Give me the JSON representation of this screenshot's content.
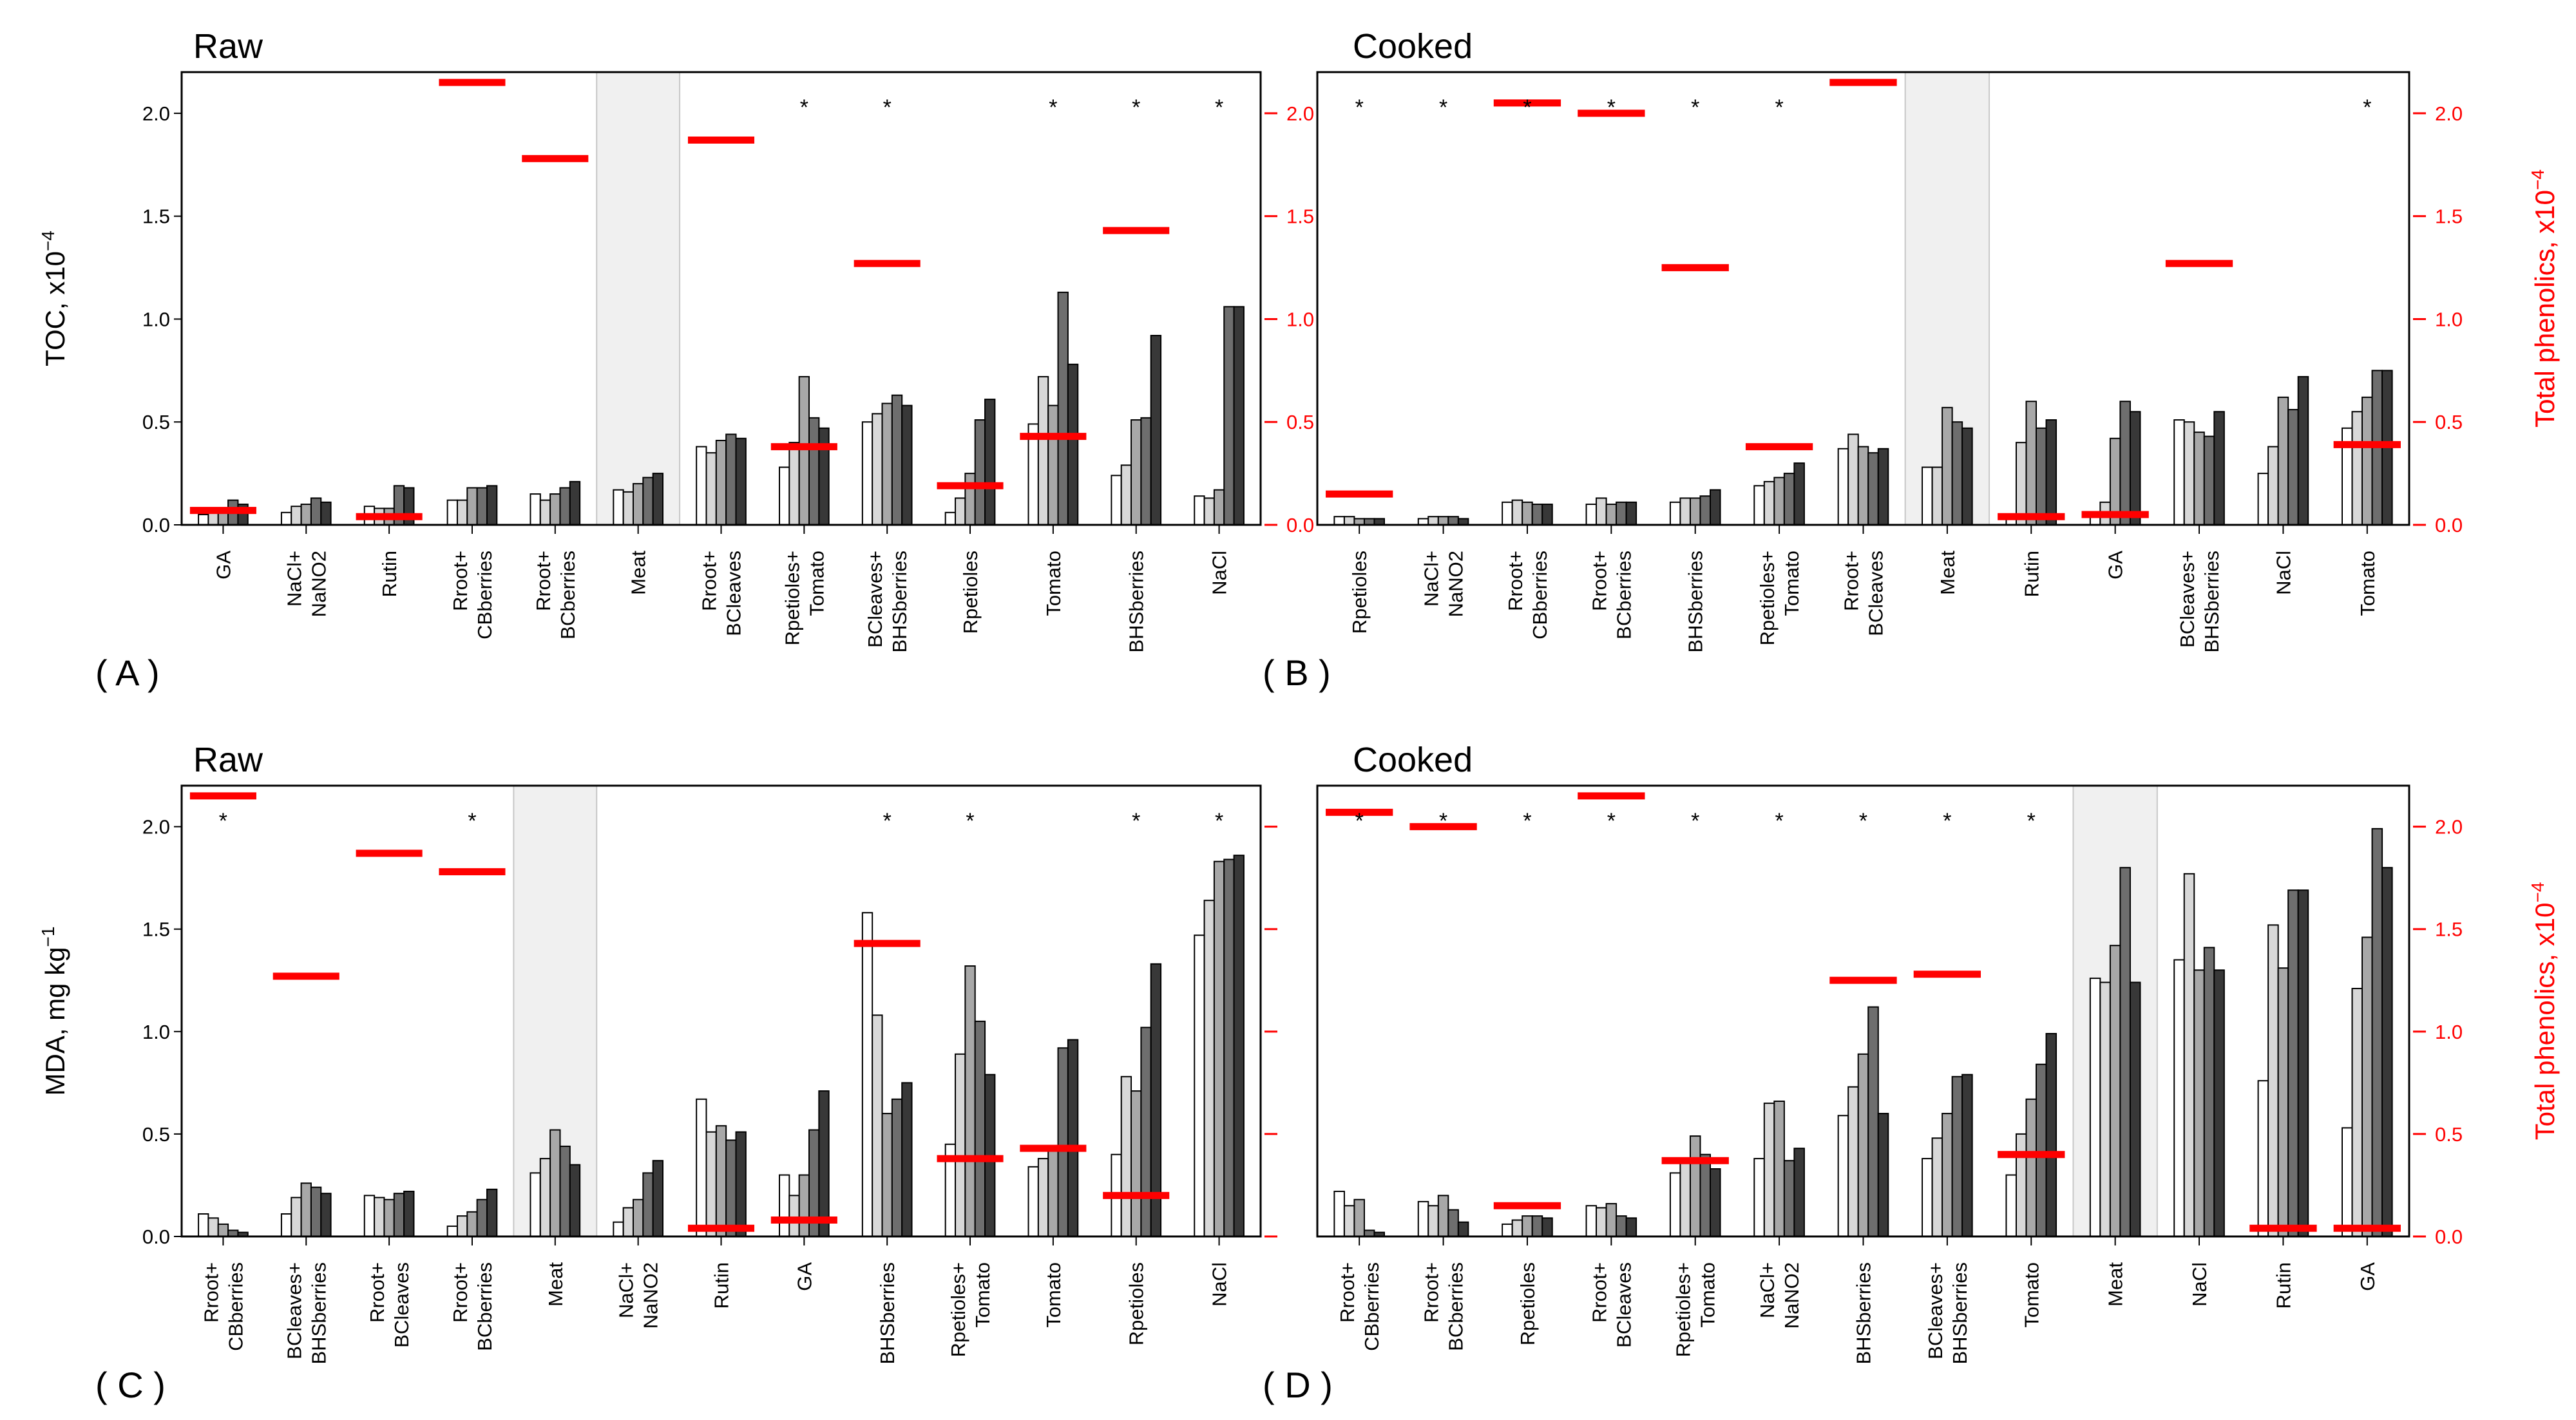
{
  "colors": {
    "phenolics": "#ff0000",
    "meat_shade": "#f0f0f0",
    "bar_shades": [
      "#ffffff",
      "#d8d8d8",
      "#a8a8a8",
      "#6e6e6e",
      "#383838",
      "#0a0a0a"
    ]
  },
  "chart_data": [
    {
      "type": "bar",
      "panel_label": "( A )",
      "title": "Raw",
      "ylabel": "TOC, x10",
      "ylabel_exp": "−4",
      "ylim": [
        0,
        2.2
      ],
      "yticks": [
        "0.0",
        "0.5",
        "1.0",
        "1.5",
        "2.0"
      ],
      "right_axis": true,
      "right_label": "Total phenolics, x10",
      "right_label_exp": "−4",
      "right_ticks": [
        "0.0",
        "0.5",
        "1.0",
        "1.5",
        "2.0"
      ],
      "shaded_category": "Meat",
      "categories": [
        {
          "label": [
            "GA"
          ],
          "values": [
            0.05,
            0.06,
            0.07,
            0.12,
            0.1
          ],
          "phenolics": 0.07,
          "sig": false
        },
        {
          "label": [
            "NaCl+",
            "NaNO2"
          ],
          "values": [
            0.06,
            0.09,
            0.1,
            0.13,
            0.11
          ],
          "phenolics": null,
          "sig": false
        },
        {
          "label": [
            "Rutin"
          ],
          "values": [
            0.09,
            0.08,
            0.08,
            0.19,
            0.18
          ],
          "phenolics": 0.04,
          "sig": false
        },
        {
          "label": [
            "Rroot+",
            "CBberries"
          ],
          "values": [
            0.12,
            0.12,
            0.18,
            0.18,
            0.19
          ],
          "phenolics": 2.15,
          "sig": false
        },
        {
          "label": [
            "Rroot+",
            "BCberries"
          ],
          "values": [
            0.15,
            0.12,
            0.15,
            0.18,
            0.21
          ],
          "phenolics": 1.78,
          "sig": false
        },
        {
          "label": [
            "Meat"
          ],
          "values": [
            0.17,
            0.16,
            0.2,
            0.23,
            0.25
          ],
          "phenolics": null,
          "sig": false
        },
        {
          "label": [
            "Rroot+",
            "BCleaves"
          ],
          "values": [
            0.38,
            0.35,
            0.41,
            0.44,
            0.42
          ],
          "phenolics": 1.87,
          "sig": false
        },
        {
          "label": [
            "Rpetioles+",
            "Tomato"
          ],
          "values": [
            0.28,
            0.4,
            0.72,
            0.52,
            0.47
          ],
          "phenolics": 0.38,
          "sig": true
        },
        {
          "label": [
            "BCleaves+",
            "BHSberries"
          ],
          "values": [
            0.5,
            0.54,
            0.59,
            0.63,
            0.58
          ],
          "phenolics": 1.27,
          "sig": true
        },
        {
          "label": [
            "Rpetioles"
          ],
          "values": [
            0.06,
            0.13,
            0.25,
            0.51,
            0.61
          ],
          "phenolics": 0.19,
          "sig": false
        },
        {
          "label": [
            "Tomato"
          ],
          "values": [
            0.49,
            0.72,
            0.58,
            1.13,
            0.78
          ],
          "phenolics": 0.43,
          "sig": true
        },
        {
          "label": [
            "BHSberries"
          ],
          "values": [
            0.24,
            0.29,
            0.51,
            0.52,
            0.92
          ],
          "phenolics": 1.43,
          "sig": true
        },
        {
          "label": [
            "NaCl"
          ],
          "values": [
            0.14,
            0.13,
            0.17,
            1.06,
            1.06
          ],
          "phenolics": null,
          "sig": true
        }
      ]
    },
    {
      "type": "bar",
      "panel_label": "( B )",
      "title": "Cooked",
      "ylabel": "",
      "ylim": [
        0,
        2.2
      ],
      "yticks": [],
      "right_axis": true,
      "right_label": "Total phenolics, x10",
      "right_label_exp": "−4",
      "right_ticks": [
        "0.0",
        "0.5",
        "1.0",
        "1.5",
        "2.0"
      ],
      "shaded_category": "Meat",
      "categories": [
        {
          "label": [
            "Rpetioles"
          ],
          "values": [
            0.04,
            0.04,
            0.03,
            0.03,
            0.03
          ],
          "phenolics": 0.15,
          "sig": true
        },
        {
          "label": [
            "NaCl+",
            "NaNO2"
          ],
          "values": [
            0.03,
            0.04,
            0.04,
            0.04,
            0.03
          ],
          "phenolics": null,
          "sig": true
        },
        {
          "label": [
            "Rroot+",
            "CBberries"
          ],
          "values": [
            0.11,
            0.12,
            0.11,
            0.1,
            0.1
          ],
          "phenolics": 2.05,
          "sig": true
        },
        {
          "label": [
            "Rroot+",
            "BCberries"
          ],
          "values": [
            0.1,
            0.13,
            0.1,
            0.11,
            0.11
          ],
          "phenolics": 2.0,
          "sig": true
        },
        {
          "label": [
            "BHSberries"
          ],
          "values": [
            0.11,
            0.13,
            0.13,
            0.14,
            0.17
          ],
          "phenolics": 1.25,
          "sig": true
        },
        {
          "label": [
            "Rpetioles+",
            "Tomato"
          ],
          "values": [
            0.19,
            0.21,
            0.23,
            0.25,
            0.3
          ],
          "phenolics": 0.38,
          "sig": true
        },
        {
          "label": [
            "Rroot+",
            "BCleaves"
          ],
          "values": [
            0.37,
            0.44,
            0.38,
            0.35,
            0.37
          ],
          "phenolics": 2.15,
          "sig": false
        },
        {
          "label": [
            "Meat"
          ],
          "values": [
            0.28,
            0.28,
            0.57,
            0.5,
            0.47
          ],
          "phenolics": null,
          "sig": false
        },
        {
          "label": [
            "Rutin"
          ],
          "values": [
            0.05,
            0.4,
            0.6,
            0.47,
            0.51
          ],
          "phenolics": 0.04,
          "sig": false
        },
        {
          "label": [
            "GA"
          ],
          "values": [
            0.04,
            0.11,
            0.42,
            0.6,
            0.55
          ],
          "phenolics": 0.05,
          "sig": false
        },
        {
          "label": [
            "BCleaves+",
            "BHSberries"
          ],
          "values": [
            0.51,
            0.5,
            0.45,
            0.43,
            0.55
          ],
          "phenolics": 1.27,
          "sig": false
        },
        {
          "label": [
            "NaCl"
          ],
          "values": [
            0.25,
            0.38,
            0.62,
            0.56,
            0.72
          ],
          "phenolics": null,
          "sig": false
        },
        {
          "label": [
            "Tomato"
          ],
          "values": [
            0.47,
            0.55,
            0.62,
            0.75,
            0.75
          ],
          "phenolics": 0.39,
          "sig": true
        }
      ]
    },
    {
      "type": "bar",
      "panel_label": "( C )",
      "title": "Raw",
      "ylabel": "MDA, mg kg",
      "ylabel_exp": "−1",
      "ylim": [
        0,
        2.2
      ],
      "yticks": [
        "0.0",
        "0.5",
        "1.0",
        "1.5",
        "2.0"
      ],
      "right_axis": true,
      "right_label": "",
      "right_ticks": [],
      "shaded_category": "Meat",
      "categories": [
        {
          "label": [
            "Rroot+",
            "CBberries"
          ],
          "values": [
            0.11,
            0.09,
            0.06,
            0.03,
            0.02
          ],
          "phenolics": 2.15,
          "sig": true
        },
        {
          "label": [
            "BCleaves+",
            "BHSberries"
          ],
          "values": [
            0.11,
            0.19,
            0.26,
            0.24,
            0.21
          ],
          "phenolics": 1.27,
          "sig": false
        },
        {
          "label": [
            "Rroot+",
            "BCleaves"
          ],
          "values": [
            0.2,
            0.19,
            0.18,
            0.21,
            0.22
          ],
          "phenolics": 1.87,
          "sig": false
        },
        {
          "label": [
            "Rroot+",
            "BCberries"
          ],
          "values": [
            0.05,
            0.1,
            0.12,
            0.18,
            0.23
          ],
          "phenolics": 1.78,
          "sig": true
        },
        {
          "label": [
            "Meat"
          ],
          "values": [
            0.31,
            0.38,
            0.52,
            0.44,
            0.35
          ],
          "phenolics": null,
          "sig": false
        },
        {
          "label": [
            "NaCl+",
            "NaNO2"
          ],
          "values": [
            0.07,
            0.14,
            0.18,
            0.31,
            0.37
          ],
          "phenolics": null,
          "sig": false
        },
        {
          "label": [
            "Rutin"
          ],
          "values": [
            0.67,
            0.51,
            0.54,
            0.47,
            0.51
          ],
          "phenolics": 0.04,
          "sig": false
        },
        {
          "label": [
            "GA"
          ],
          "values": [
            0.3,
            0.2,
            0.3,
            0.52,
            0.71
          ],
          "phenolics": 0.08,
          "sig": false
        },
        {
          "label": [
            "BHSberries"
          ],
          "values": [
            1.58,
            1.08,
            0.6,
            0.67,
            0.75
          ],
          "phenolics": 1.43,
          "sig": true
        },
        {
          "label": [
            "Rpetioles+",
            "Tomato"
          ],
          "values": [
            0.45,
            0.89,
            1.32,
            1.05,
            0.79
          ],
          "phenolics": 0.38,
          "sig": true
        },
        {
          "label": [
            "Tomato"
          ],
          "values": [
            0.34,
            0.38,
            0.42,
            0.92,
            0.96
          ],
          "phenolics": 0.43,
          "sig": false
        },
        {
          "label": [
            "Rpetioles"
          ],
          "values": [
            0.4,
            0.78,
            0.71,
            1.02,
            1.33
          ],
          "phenolics": 0.2,
          "sig": true
        },
        {
          "label": [
            "NaCl"
          ],
          "values": [
            1.47,
            1.64,
            1.83,
            1.84,
            1.86
          ],
          "phenolics": null,
          "sig": true
        }
      ]
    },
    {
      "type": "bar",
      "panel_label": "( D )",
      "title": "Cooked",
      "ylabel": "",
      "ylim": [
        0,
        2.2
      ],
      "yticks": [],
      "right_axis": true,
      "right_label": "Total phenolics, x10",
      "right_label_exp": "−4",
      "right_ticks": [
        "0.0",
        "0.5",
        "1.0",
        "1.5",
        "2.0"
      ],
      "shaded_category": "Meat",
      "categories": [
        {
          "label": [
            "Rroot+",
            "CBberries"
          ],
          "values": [
            0.22,
            0.15,
            0.18,
            0.03,
            0.02
          ],
          "phenolics": 2.07,
          "sig": true
        },
        {
          "label": [
            "Rroot+",
            "BCberries"
          ],
          "values": [
            0.17,
            0.15,
            0.2,
            0.13,
            0.07
          ],
          "phenolics": 2.0,
          "sig": true
        },
        {
          "label": [
            "Rpetioles"
          ],
          "values": [
            0.06,
            0.08,
            0.1,
            0.1,
            0.09
          ],
          "phenolics": 0.15,
          "sig": true
        },
        {
          "label": [
            "Rroot+",
            "BCleaves"
          ],
          "values": [
            0.15,
            0.14,
            0.16,
            0.1,
            0.09
          ],
          "phenolics": 2.15,
          "sig": true
        },
        {
          "label": [
            "Rpetioles+",
            "Tomato"
          ],
          "values": [
            0.31,
            0.38,
            0.49,
            0.4,
            0.33
          ],
          "phenolics": 0.37,
          "sig": true
        },
        {
          "label": [
            "NaCl+",
            "NaNO2"
          ],
          "values": [
            0.38,
            0.65,
            0.66,
            0.37,
            0.43
          ],
          "phenolics": null,
          "sig": true
        },
        {
          "label": [
            "BHSberries"
          ],
          "values": [
            0.59,
            0.73,
            0.89,
            1.12,
            0.6
          ],
          "phenolics": 1.25,
          "sig": true
        },
        {
          "label": [
            "BCleaves+",
            "BHSberries"
          ],
          "values": [
            0.38,
            0.48,
            0.6,
            0.78,
            0.79
          ],
          "phenolics": 1.28,
          "sig": true
        },
        {
          "label": [
            "Tomato"
          ],
          "values": [
            0.3,
            0.5,
            0.67,
            0.84,
            0.99
          ],
          "phenolics": 0.4,
          "sig": true
        },
        {
          "label": [
            "Meat"
          ],
          "values": [
            1.26,
            1.24,
            1.42,
            1.8,
            1.24
          ],
          "phenolics": null,
          "sig": false
        },
        {
          "label": [
            "NaCl"
          ],
          "values": [
            1.35,
            1.77,
            1.3,
            1.41,
            1.3
          ],
          "phenolics": null,
          "sig": false
        },
        {
          "label": [
            "Rutin"
          ],
          "values": [
            0.76,
            1.52,
            1.31,
            1.69,
            1.69
          ],
          "phenolics": 0.04,
          "sig": false
        },
        {
          "label": [
            "GA"
          ],
          "values": [
            0.53,
            1.21,
            1.46,
            1.99,
            1.8
          ],
          "phenolics": 0.04,
          "sig": false
        }
      ]
    }
  ]
}
